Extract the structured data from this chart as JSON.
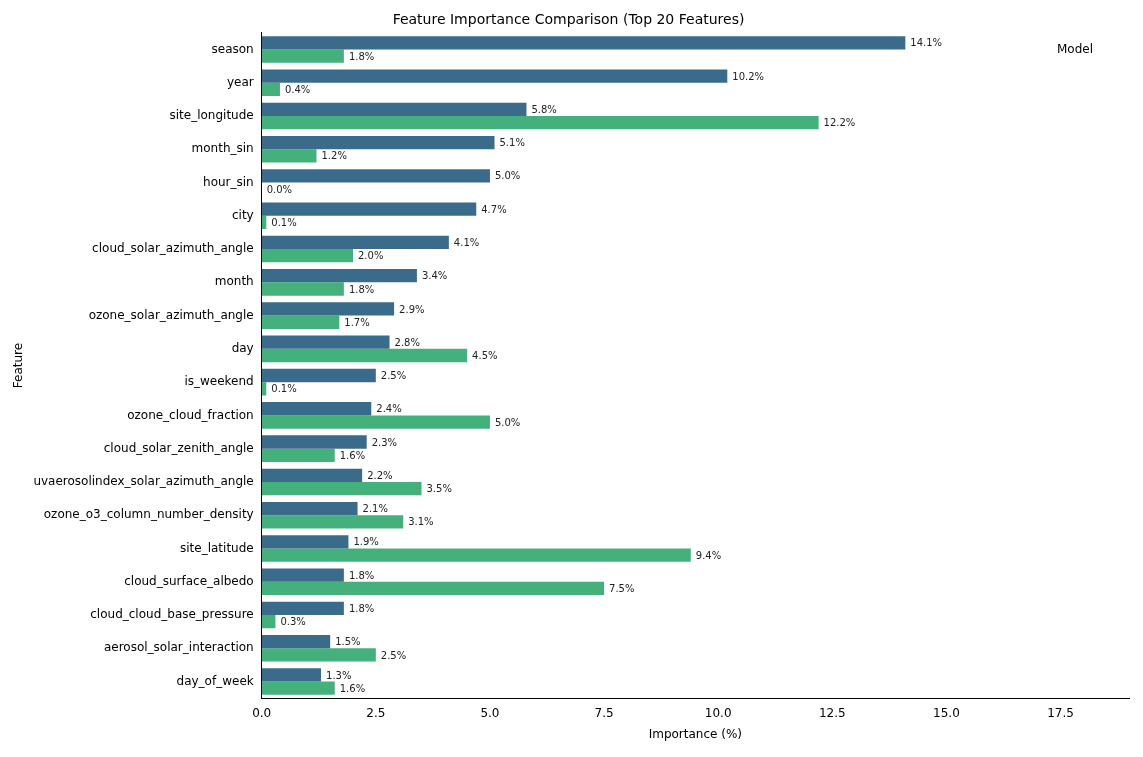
{
  "chart_data": {
    "type": "bar",
    "orientation": "horizontal",
    "title": "Feature Importance Comparison (Top 20 Features)",
    "xlabel": "Importance (%)",
    "ylabel": "Feature",
    "annotations": [
      "Model"
    ],
    "categories": [
      "season",
      "year",
      "site_longitude",
      "month_sin",
      "hour_sin",
      "city",
      "cloud_solar_azimuth_angle",
      "month",
      "ozone_solar_azimuth_angle",
      "day",
      "is_weekend",
      "ozone_cloud_fraction",
      "cloud_solar_zenith_angle",
      "uvaerosolindex_solar_azimuth_angle",
      "ozone_o3_column_number_density",
      "site_latitude",
      "cloud_surface_albedo",
      "cloud_cloud_base_pressure",
      "aerosol_solar_interaction",
      "day_of_week"
    ],
    "series": [
      {
        "color": "#3a6b8a",
        "values": [
          14.1,
          10.2,
          5.8,
          5.1,
          5.0,
          4.7,
          4.1,
          3.4,
          2.9,
          2.8,
          2.5,
          2.4,
          2.3,
          2.2,
          2.1,
          1.9,
          1.8,
          1.8,
          1.5,
          1.3
        ],
        "value_labels": [
          "14.1%",
          "10.2%",
          "5.8%",
          "5.1%",
          "5.0%",
          "4.7%",
          "4.1%",
          "3.4%",
          "2.9%",
          "2.8%",
          "2.5%",
          "2.4%",
          "2.3%",
          "2.2%",
          "2.1%",
          "1.9%",
          "1.8%",
          "1.8%",
          "1.5%",
          "1.3%"
        ]
      },
      {
        "color": "#44b07b",
        "values": [
          1.8,
          0.4,
          12.2,
          1.2,
          0.0,
          0.1,
          2.0,
          1.8,
          1.7,
          4.5,
          0.1,
          5.0,
          1.6,
          3.5,
          3.1,
          9.4,
          7.5,
          0.3,
          2.5,
          1.6
        ],
        "value_labels": [
          "1.8%",
          "0.4%",
          "12.2%",
          "1.2%",
          "0.0%",
          "0.1%",
          "2.0%",
          "1.8%",
          "1.7%",
          "4.5%",
          "0.1%",
          "5.0%",
          "1.6%",
          "3.5%",
          "3.1%",
          "9.4%",
          "7.5%",
          "0.3%",
          "2.5%",
          "1.6%"
        ]
      }
    ],
    "xlim": [
      0,
      19
    ],
    "xticks": [
      {
        "value": 0,
        "label": "0.0"
      },
      {
        "value": 2.5,
        "label": "2.5"
      },
      {
        "value": 5,
        "label": "5.0"
      },
      {
        "value": 7.5,
        "label": "7.5"
      },
      {
        "value": 10,
        "label": "10.0"
      },
      {
        "value": 12.5,
        "label": "12.5"
      },
      {
        "value": 15,
        "label": "15.0"
      },
      {
        "value": 17.5,
        "label": "17.5"
      }
    ],
    "grid": false
  }
}
